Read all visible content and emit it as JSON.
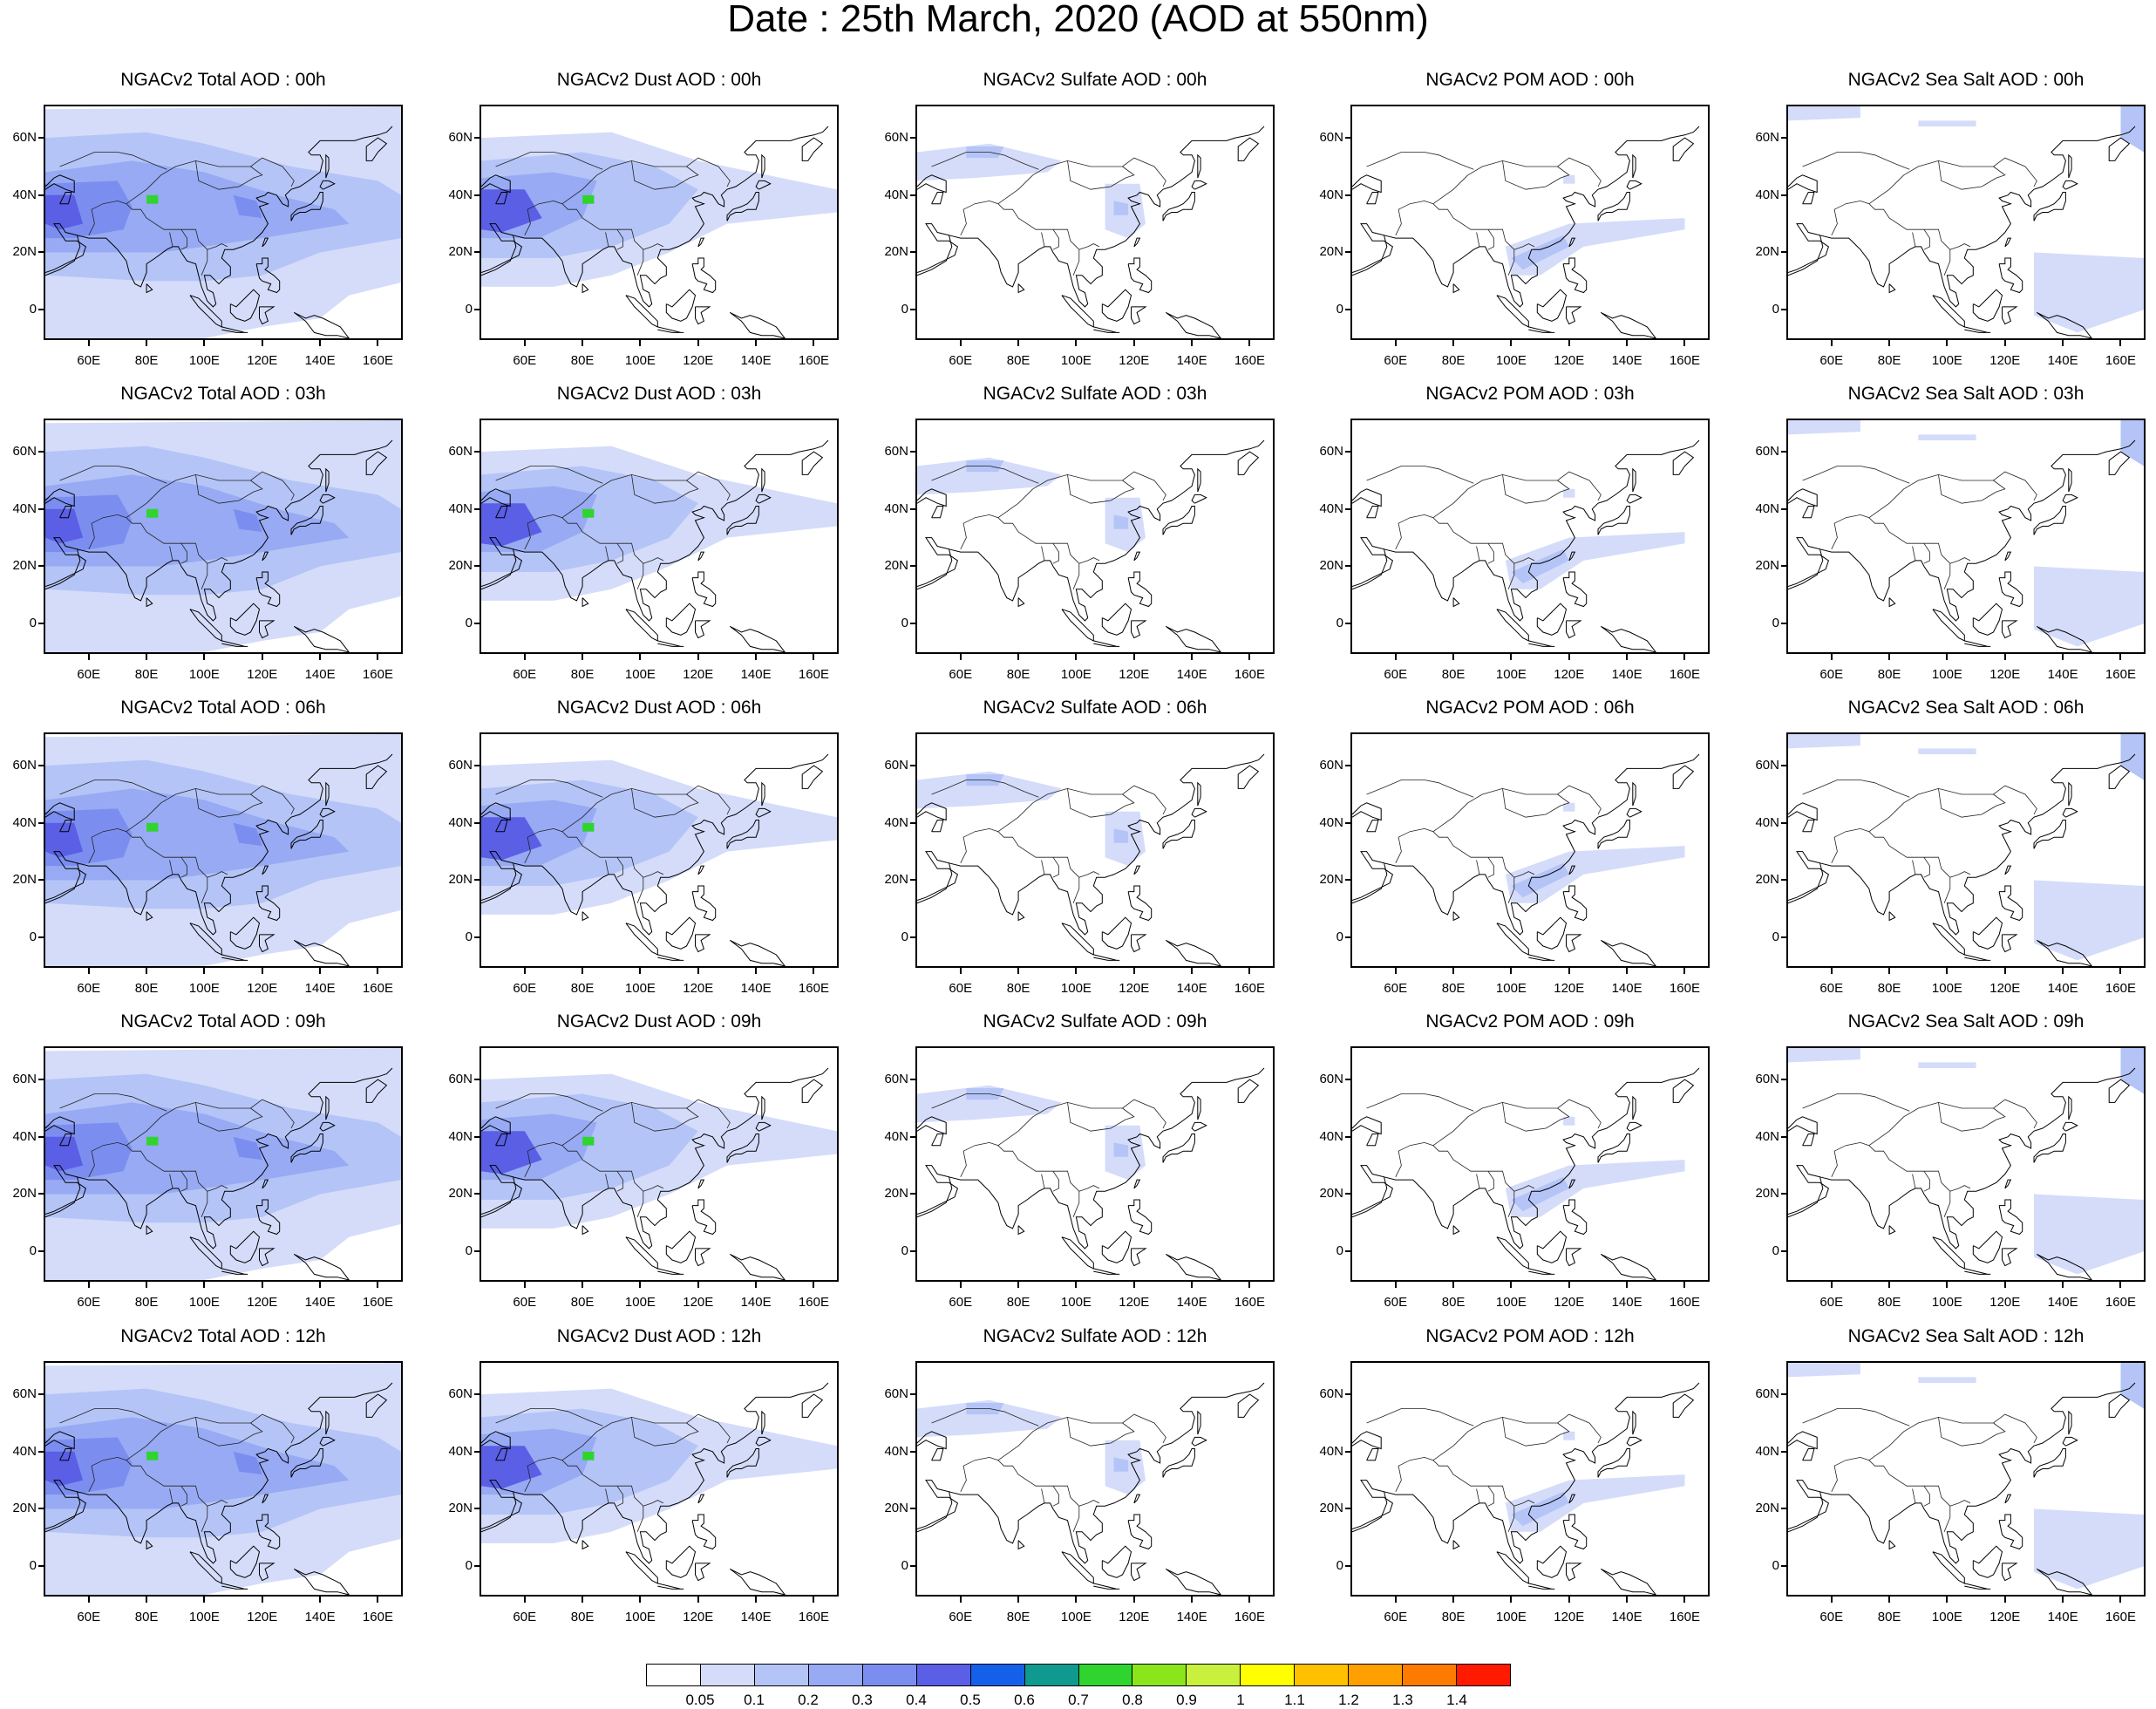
{
  "figure": {
    "title": "Date : 25th March, 2020 (AOD at 550nm)"
  },
  "axes": {
    "y_labels": [
      "60N",
      "40N",
      "20N",
      "0"
    ],
    "x_labels": [
      "60E",
      "80E",
      "100E",
      "120E",
      "140E",
      "160E"
    ]
  },
  "panels": [
    {
      "title": "NGACv2 Total AOD : 00h",
      "type": "total"
    },
    {
      "title": "NGACv2 Dust AOD : 00h",
      "type": "dust"
    },
    {
      "title": "NGACv2 Sulfate AOD : 00h",
      "type": "sulfate"
    },
    {
      "title": "NGACv2 POM AOD : 00h",
      "type": "pom"
    },
    {
      "title": "NGACv2 Sea Salt AOD : 00h",
      "type": "seasalt"
    },
    {
      "title": "NGACv2 Total AOD : 03h",
      "type": "total"
    },
    {
      "title": "NGACv2 Dust AOD : 03h",
      "type": "dust"
    },
    {
      "title": "NGACv2 Sulfate AOD : 03h",
      "type": "sulfate"
    },
    {
      "title": "NGACv2 POM AOD : 03h",
      "type": "pom"
    },
    {
      "title": "NGACv2 Sea Salt AOD : 03h",
      "type": "seasalt"
    },
    {
      "title": "NGACv2 Total AOD : 06h",
      "type": "total"
    },
    {
      "title": "NGACv2 Dust AOD : 06h",
      "type": "dust"
    },
    {
      "title": "NGACv2 Sulfate AOD : 06h",
      "type": "sulfate"
    },
    {
      "title": "NGACv2 POM AOD : 06h",
      "type": "pom"
    },
    {
      "title": "NGACv2 Sea Salt AOD : 06h",
      "type": "seasalt"
    },
    {
      "title": "NGACv2 Total AOD : 09h",
      "type": "total"
    },
    {
      "title": "NGACv2 Dust AOD : 09h",
      "type": "dust"
    },
    {
      "title": "NGACv2 Sulfate AOD : 09h",
      "type": "sulfate"
    },
    {
      "title": "NGACv2 POM AOD : 09h",
      "type": "pom"
    },
    {
      "title": "NGACv2 Sea Salt  AOD : 09h",
      "type": "seasalt"
    },
    {
      "title": "NGACv2 Total AOD  : 12h",
      "type": "total"
    },
    {
      "title": "NGACv2 Dust AOD : 12h",
      "type": "dust"
    },
    {
      "title": "NGACv2 Sulfate AOD : 12h",
      "type": "sulfate"
    },
    {
      "title": "NGACv2 POM  AOD : 12h",
      "type": "pom"
    },
    {
      "title": "NGACv2 Sea Salt  AOD : 12h",
      "type": "seasalt"
    }
  ],
  "colorbar": {
    "labels": [
      "0.05",
      "0.1",
      "0.2",
      "0.3",
      "0.4",
      "0.5",
      "0.6",
      "0.7",
      "0.8",
      "0.9",
      "1",
      "1.1",
      "1.2",
      "1.3",
      "1.4"
    ],
    "colors": [
      "#ffffff",
      "#d4dcfa",
      "#b4c4f7",
      "#97aaf3",
      "#7b8ef0",
      "#5a5fe6",
      "#1560e8",
      "#0e9a8e",
      "#2fd42f",
      "#8ae61a",
      "#c8f03c",
      "#ffff00",
      "#ffc000",
      "#ffa000",
      "#ff7b00",
      "#ff1a00"
    ]
  }
}
